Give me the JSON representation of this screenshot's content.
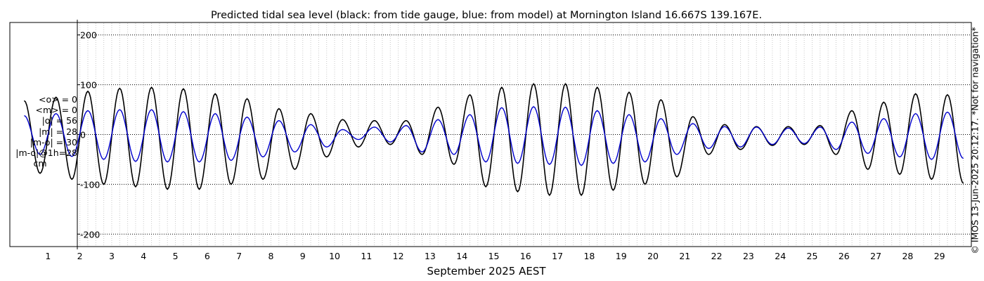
{
  "chart_data": {
    "type": "line",
    "title": "Predicted tidal sea level (black: from tide gauge, blue: from model) at Mornington Island 16.667S 139.167E.",
    "xlabel": "September 2025 AEST",
    "ylabel": "",
    "xlim": [
      -0.2,
      30
    ],
    "ylim": [
      -225,
      225
    ],
    "x_ticks": [
      1,
      2,
      3,
      4,
      5,
      6,
      7,
      8,
      9,
      10,
      11,
      12,
      13,
      14,
      15,
      16,
      17,
      18,
      19,
      20,
      21,
      22,
      23,
      24,
      25,
      26,
      27,
      28,
      29
    ],
    "y_ticks": [
      -200,
      -100,
      0,
      100,
      200
    ],
    "grid": {
      "x": "minor-dotted",
      "y": "major-dotted"
    },
    "credit": "© IMOS 13-Jun-2025 20:12:17. *Not for navigation*",
    "stats_lines": [
      "<o> = 0",
      "<m> = 0",
      "|o| = 56",
      "|m| = 28",
      "|m-o| = 30",
      "|m-o|@1h=28",
      "cm"
    ],
    "series": [
      {
        "color": "#000000",
        "x": [
          0.25,
          0.75,
          1.25,
          1.75,
          2.25,
          2.75,
          3.25,
          3.75,
          4.25,
          4.75,
          5.25,
          5.75,
          6.25,
          6.75,
          7.25,
          7.75,
          8.25,
          8.75,
          9.25,
          9.75,
          10.25,
          10.75,
          11.25,
          11.75,
          12.25,
          12.75,
          13.25,
          13.75,
          14.25,
          14.75,
          15.25,
          15.75,
          16.25,
          16.75,
          17.25,
          17.75,
          18.25,
          18.75,
          19.25,
          19.75,
          20.25,
          20.75,
          21.25,
          21.75,
          22.25,
          22.75,
          23.25,
          23.75,
          24.25,
          24.75,
          25.25,
          25.75,
          26.25,
          26.75,
          27.25,
          27.75,
          28.25,
          28.75,
          29.25,
          29.75
        ],
        "y": [
          68,
          -78,
          75,
          -90,
          87,
          -100,
          93,
          -105,
          95,
          -110,
          92,
          -110,
          82,
          -100,
          72,
          -90,
          52,
          -70,
          42,
          -45,
          30,
          -25,
          28,
          -20,
          28,
          -40,
          55,
          -60,
          80,
          -105,
          95,
          -115,
          102,
          -122,
          102,
          -122,
          95,
          -112,
          85,
          -100,
          70,
          -85,
          36,
          -40,
          20,
          -30,
          16,
          -22,
          16,
          -20,
          18,
          -40,
          48,
          -70,
          65,
          -80,
          82,
          -90,
          80,
          -98
        ],
        "name": ""
      },
      {
        "color": "#0000cc",
        "x": [
          0.25,
          0.75,
          1.25,
          1.75,
          2.25,
          2.75,
          3.25,
          3.75,
          4.25,
          4.75,
          5.25,
          5.75,
          6.25,
          6.75,
          7.25,
          7.75,
          8.25,
          8.75,
          9.25,
          9.75,
          10.25,
          10.75,
          11.25,
          11.75,
          12.25,
          12.75,
          13.25,
          13.75,
          14.25,
          14.75,
          15.25,
          15.75,
          16.25,
          16.75,
          17.25,
          17.75,
          18.25,
          18.75,
          19.25,
          19.75,
          20.25,
          20.75,
          21.25,
          21.75,
          22.25,
          22.75,
          23.25,
          23.75,
          24.25,
          24.75,
          25.25,
          25.75,
          26.25,
          26.75,
          27.25,
          27.75,
          28.25,
          28.75,
          29.25,
          29.75
        ],
        "y": [
          38,
          -40,
          42,
          -44,
          48,
          -50,
          50,
          -54,
          50,
          -55,
          46,
          -55,
          42,
          -52,
          35,
          -45,
          28,
          -35,
          20,
          -25,
          10,
          -10,
          15,
          -15,
          18,
          -35,
          30,
          -40,
          40,
          -55,
          54,
          -58,
          56,
          -60,
          55,
          -62,
          48,
          -58,
          40,
          -55,
          32,
          -40,
          22,
          -28,
          16,
          -25,
          15,
          -20,
          13,
          -18,
          15,
          -30,
          25,
          -38,
          32,
          -45,
          42,
          -50,
          45,
          -48
        ],
        "name": ""
      }
    ]
  }
}
